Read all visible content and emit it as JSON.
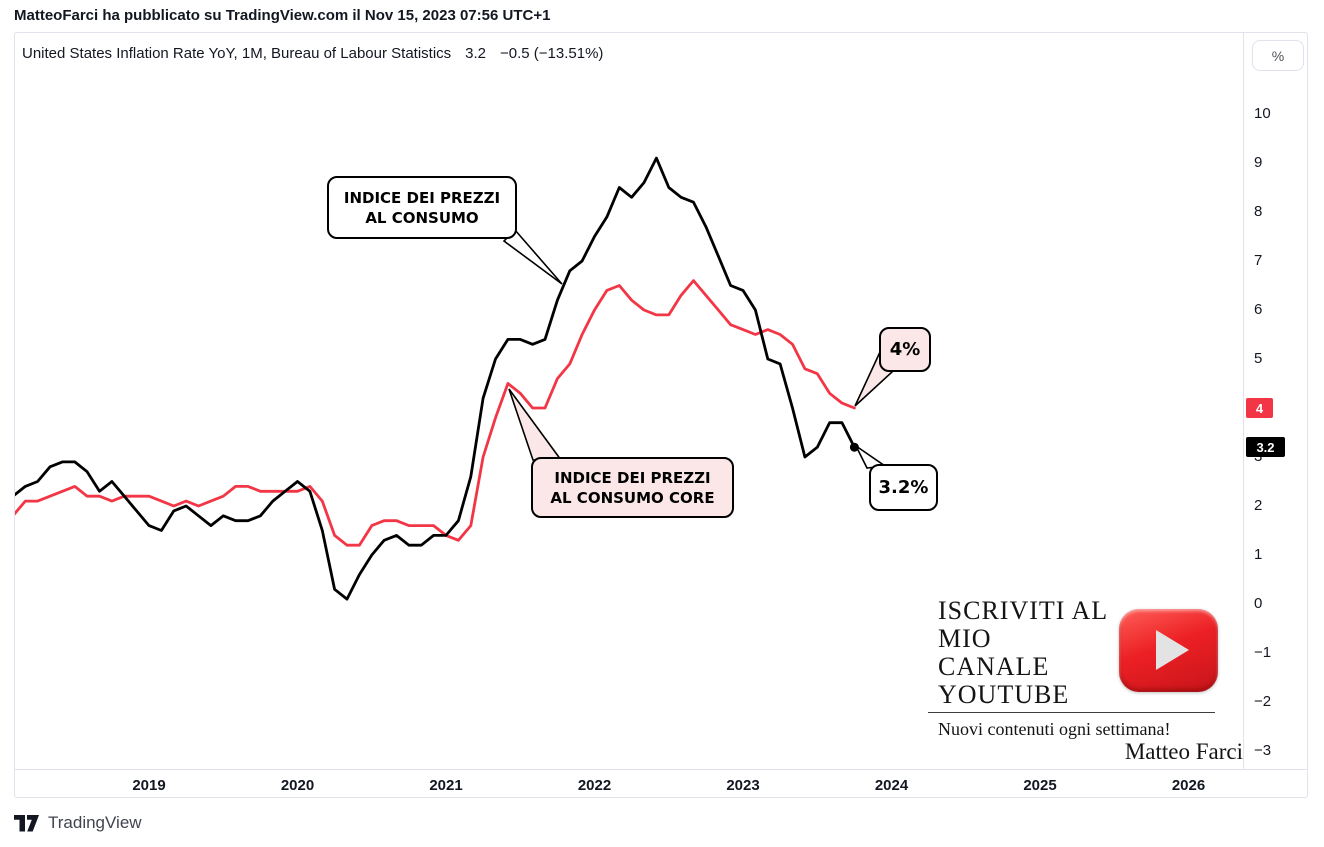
{
  "header": {
    "byline": "MatteoFarci ha pubblicato su TradingView.com il Nov 15, 2023 07:56 UTC+1"
  },
  "chart": {
    "title": "United States Inflation Rate YoY, 1M, Bureau of Labour Statistics",
    "last_value": "3.2",
    "change": "−0.5 (−13.51%)",
    "unit_button_label": "%"
  },
  "chart_data": {
    "type": "line",
    "title": "United States Inflation Rate YoY",
    "interval": "1M",
    "source": "Bureau of Labour Statistics",
    "x_start_month": "2018-02",
    "x_tick_years": [
      2019,
      2020,
      2021,
      2022,
      2023,
      2024,
      2025,
      2026
    ],
    "y_ticks": [
      10,
      9,
      8,
      7,
      6,
      5,
      4,
      3,
      2,
      1,
      0,
      -1,
      -2,
      -3
    ],
    "y_unit": "%",
    "ylim": [
      -3.6,
      11.6
    ],
    "grid": false,
    "legend_position": "none",
    "series": [
      {
        "id": "cpi-line",
        "name": "Indice dei prezzi al consumo (US CPI YoY %)",
        "color": "#000000",
        "end_dot": true,
        "values": [
          2.2,
          2.4,
          2.5,
          2.8,
          2.9,
          2.9,
          2.7,
          2.3,
          2.5,
          2.2,
          1.9,
          1.6,
          1.5,
          1.9,
          2.0,
          1.8,
          1.6,
          1.8,
          1.7,
          1.7,
          1.8,
          2.1,
          2.3,
          2.5,
          2.3,
          1.5,
          0.3,
          0.1,
          0.6,
          1.0,
          1.3,
          1.4,
          1.2,
          1.2,
          1.4,
          1.4,
          1.7,
          2.6,
          4.2,
          5.0,
          5.4,
          5.4,
          5.3,
          5.4,
          6.2,
          6.8,
          7.0,
          7.5,
          7.9,
          8.5,
          8.3,
          8.6,
          9.1,
          8.5,
          8.3,
          8.2,
          7.7,
          7.1,
          6.5,
          6.4,
          6.0,
          5.0,
          4.9,
          4.0,
          3.0,
          3.2,
          3.7,
          3.7,
          3.2
        ]
      },
      {
        "id": "core-cpi-line",
        "name": "Indice dei prezzi al consumo core (US Core CPI YoY %)",
        "color": "#F23645",
        "end_dot": false,
        "values": [
          1.8,
          2.1,
          2.1,
          2.2,
          2.3,
          2.4,
          2.2,
          2.2,
          2.1,
          2.2,
          2.2,
          2.2,
          2.1,
          2.0,
          2.1,
          2.0,
          2.1,
          2.2,
          2.4,
          2.4,
          2.3,
          2.3,
          2.3,
          2.3,
          2.4,
          2.1,
          1.4,
          1.2,
          1.2,
          1.6,
          1.7,
          1.7,
          1.6,
          1.6,
          1.6,
          1.4,
          1.3,
          1.6,
          3.0,
          3.8,
          4.5,
          4.3,
          4.0,
          4.0,
          4.6,
          4.9,
          5.5,
          6.0,
          6.4,
          6.5,
          6.2,
          6.0,
          5.9,
          5.9,
          6.3,
          6.6,
          6.3,
          6.0,
          5.7,
          5.6,
          5.5,
          5.6,
          5.5,
          5.3,
          4.8,
          4.7,
          4.3,
          4.1,
          4.0
        ]
      }
    ]
  },
  "price_badges": [
    {
      "label": "4",
      "value": 4,
      "bg": "#F23645",
      "fg": "#FFFFFF",
      "width": 27
    },
    {
      "label": "3.2",
      "value": 3.2,
      "bg": "#000000",
      "fg": "#FFFFFF",
      "width": 39
    }
  ],
  "annotations": {
    "cpi_bubble": {
      "line1": "INDICE DEI PREZZI",
      "line2": "AL CONSUMO"
    },
    "core_bubble": {
      "line1": "INDICE DEI PREZZI",
      "line2": "AL CONSUMO CORE"
    },
    "core_last_label": "4%",
    "cpi_last_label": "3.2%"
  },
  "promo": {
    "headline_lines": [
      "ISCRIVITI AL",
      "MIO",
      "CANALE",
      "YOUTUBE"
    ],
    "subtitle": "Nuovi contenuti ogni settimana!",
    "signature": "Matteo Farci",
    "youtube_red": "#EC2024"
  },
  "footer": {
    "brand": "TradingView"
  }
}
